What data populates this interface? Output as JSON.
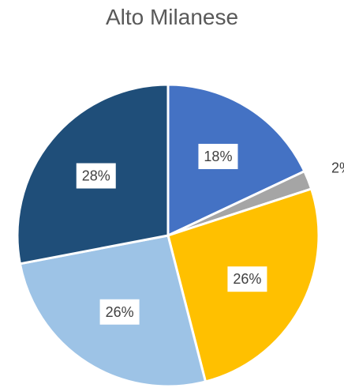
{
  "chart_data": {
    "type": "pie",
    "title": "Alto Milanese",
    "slices": [
      {
        "label": "18%",
        "value": 18,
        "color": "#4472C4"
      },
      {
        "label": "2%",
        "value": 2,
        "color": "#A5A5A5"
      },
      {
        "label": "26%",
        "value": 26,
        "color": "#FFC000"
      },
      {
        "label": "26%",
        "value": 26,
        "color": "#9DC3E6"
      },
      {
        "label": "28%",
        "value": 28,
        "color": "#1F4E79"
      }
    ],
    "start_angle": "12 o'clock",
    "direction": "clockwise",
    "legend": "none"
  }
}
